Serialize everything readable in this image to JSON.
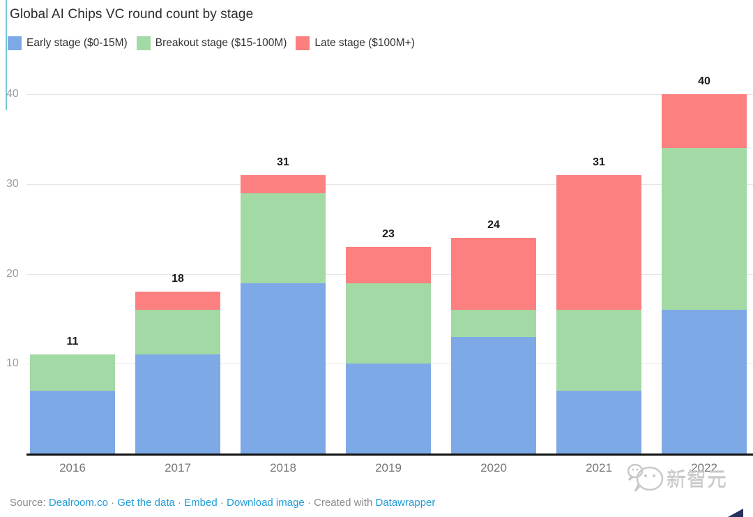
{
  "title": "Global AI Chips VC round count by stage",
  "legend": {
    "items": [
      {
        "label": "Early stage ($0-15M)",
        "color": "#7ea9e7"
      },
      {
        "label": "Breakout stage ($15-100M)",
        "color": "#a3d9a4"
      },
      {
        "label": "Late stage ($100M+)",
        "color": "#fd8080"
      }
    ]
  },
  "chart_data": {
    "type": "bar",
    "stacked": true,
    "title": "Global AI Chips VC round count by stage",
    "categories": [
      "2016",
      "2017",
      "2018",
      "2019",
      "2020",
      "2021",
      "2022"
    ],
    "series": [
      {
        "name": "Early stage ($0-15M)",
        "color": "#7ea9e7",
        "values": [
          7,
          11,
          19,
          10,
          13,
          7,
          16
        ]
      },
      {
        "name": "Breakout stage ($15-100M)",
        "color": "#a3d9a4",
        "values": [
          4,
          5,
          10,
          9,
          3,
          9,
          18
        ]
      },
      {
        "name": "Late stage ($100M+)",
        "color": "#fd8080",
        "values": [
          0,
          2,
          2,
          4,
          8,
          15,
          6
        ]
      }
    ],
    "totals": [
      11,
      18,
      31,
      23,
      24,
      31,
      40
    ],
    "xlabel": "",
    "ylabel": "",
    "yticks": [
      10,
      20,
      30,
      40
    ],
    "ylim": [
      0,
      40
    ],
    "grid": true,
    "legend_position": "top"
  },
  "footer": {
    "parts": [
      {
        "text": "Source: ",
        "type": "muted",
        "name": "source-label"
      },
      {
        "text": "Dealroom.co",
        "type": "link",
        "name": "source-link"
      },
      {
        "text": " · ",
        "type": "sep",
        "name": "separator"
      },
      {
        "text": "Get the data",
        "type": "link",
        "name": "get-the-data-link"
      },
      {
        "text": " · ",
        "type": "sep",
        "name": "separator"
      },
      {
        "text": "Embed",
        "type": "link",
        "name": "embed-link"
      },
      {
        "text": " · ",
        "type": "sep",
        "name": "separator"
      },
      {
        "text": "Download image",
        "type": "link",
        "name": "download-image-link"
      },
      {
        "text": " · ",
        "type": "sep",
        "name": "separator"
      },
      {
        "text": "Created with ",
        "type": "muted",
        "name": "created-with-label"
      },
      {
        "text": "Datawrapper",
        "type": "link",
        "name": "datawrapper-link"
      }
    ]
  },
  "watermark": {
    "text": "新智元"
  },
  "colors": {
    "early_stage": "#7ea9e7",
    "breakout_stage": "#a3d9a4",
    "late_stage": "#fd8080",
    "link": "#1e9cd7",
    "accent_line": "#79c7d4",
    "gridline": "#e6e6e6",
    "axis_line": "#121212",
    "ytick_text": "#9c9c9c",
    "xtick_text": "#767676",
    "total_label": "#1a1a1a",
    "watermark": "#cccccc"
  }
}
